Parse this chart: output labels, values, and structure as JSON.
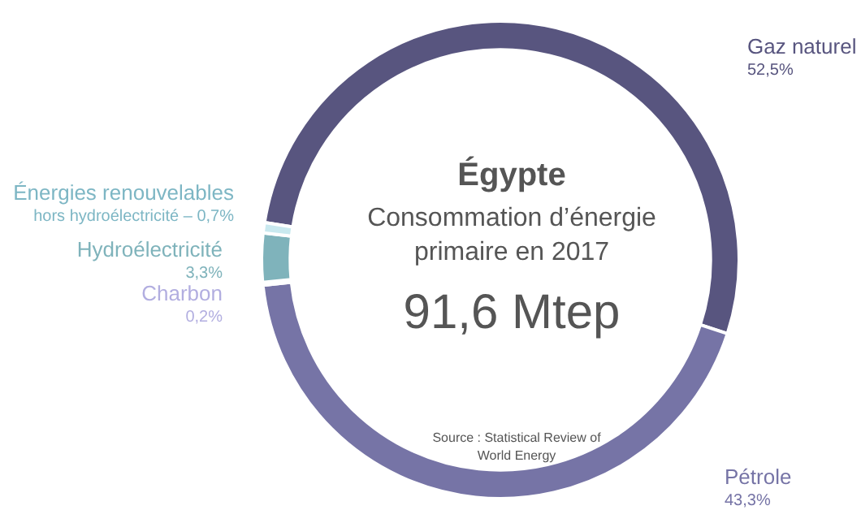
{
  "chart_data": {
    "type": "donut",
    "title": "Égypte",
    "subtitle": "Consommation d’énergie primaire en 2017",
    "categories": [
      "Gaz naturel",
      "Pétrole",
      "Charbon",
      "Hydroélectricité",
      "Énergies renouvelables hors hydroélectricité"
    ],
    "values": [
      52.5,
      43.3,
      0.2,
      3.3,
      0.7
    ],
    "colors": [
      "#58557f",
      "#7674a6",
      "#b2aee0",
      "#7fb3bb",
      "#c9e9ef"
    ],
    "value_labels": [
      "52,5%",
      "43,3%",
      "0,2%",
      "3,3%",
      "0,7%"
    ],
    "annotations": [
      "91,6 Mtep",
      "Source : Statistical Review of World Energy"
    ],
    "legend": false
  }
}
